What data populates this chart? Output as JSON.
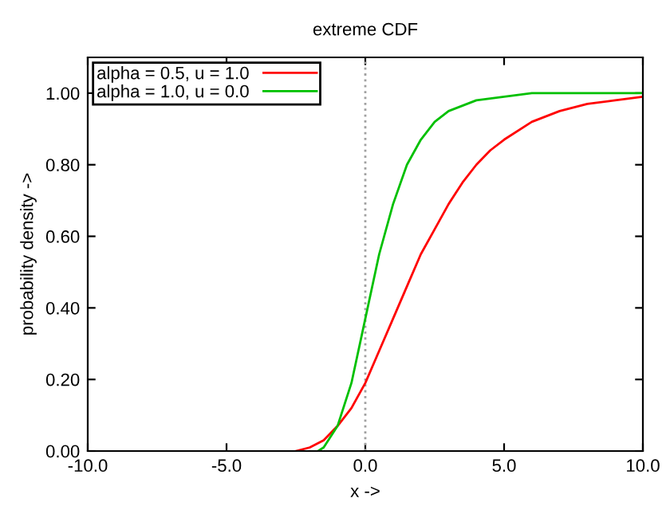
{
  "chart_data": {
    "type": "line",
    "title": "extreme CDF",
    "xlabel": "x ->",
    "ylabel": "probability density ->",
    "xlim": [
      -10,
      10
    ],
    "ylim": [
      0,
      1.1
    ],
    "xticks": [
      {
        "value": -10,
        "label": "-10.0"
      },
      {
        "value": -5,
        "label": "-5.0"
      },
      {
        "value": 0,
        "label": "0.0"
      },
      {
        "value": 5,
        "label": "5.0"
      },
      {
        "value": 10,
        "label": "10.0"
      }
    ],
    "yticks": [
      {
        "value": 0,
        "label": "0.00"
      },
      {
        "value": 0.2,
        "label": "0.20"
      },
      {
        "value": 0.4,
        "label": "0.40"
      },
      {
        "value": 0.6,
        "label": "0.60"
      },
      {
        "value": 0.8,
        "label": "0.80"
      },
      {
        "value": 1.0,
        "label": "1.00"
      }
    ],
    "series": [
      {
        "name": "alpha = 0.5, u = 1.0",
        "color": "#ff0000",
        "x": [
          -2.5,
          -2,
          -1.5,
          -1,
          -0.5,
          0,
          0.5,
          1,
          1.5,
          2,
          2.5,
          3,
          3.5,
          4,
          4.5,
          5,
          6,
          7,
          8,
          9,
          10
        ],
        "values": [
          0.0,
          0.01,
          0.03,
          0.07,
          0.12,
          0.19,
          0.28,
          0.37,
          0.46,
          0.55,
          0.62,
          0.69,
          0.75,
          0.8,
          0.84,
          0.87,
          0.92,
          0.95,
          0.97,
          0.98,
          0.99
        ]
      },
      {
        "name": "alpha = 1.0, u = 0.0",
        "color": "#00c000",
        "x": [
          -1.7,
          -1.5,
          -1,
          -0.5,
          0,
          0.5,
          1,
          1.5,
          2,
          2.5,
          3,
          4,
          5,
          6,
          8,
          10
        ],
        "values": [
          0.0,
          0.01,
          0.07,
          0.19,
          0.37,
          0.55,
          0.69,
          0.8,
          0.87,
          0.92,
          0.95,
          0.98,
          0.99,
          1.0,
          1.0,
          1.0
        ]
      }
    ],
    "ref_lines": [
      {
        "axis": "x",
        "value": 0,
        "color": "#a0a0a0",
        "line_style": "dotted"
      }
    ],
    "legend": "top left",
    "grid": false,
    "marker": "none",
    "line_style": "solid"
  }
}
